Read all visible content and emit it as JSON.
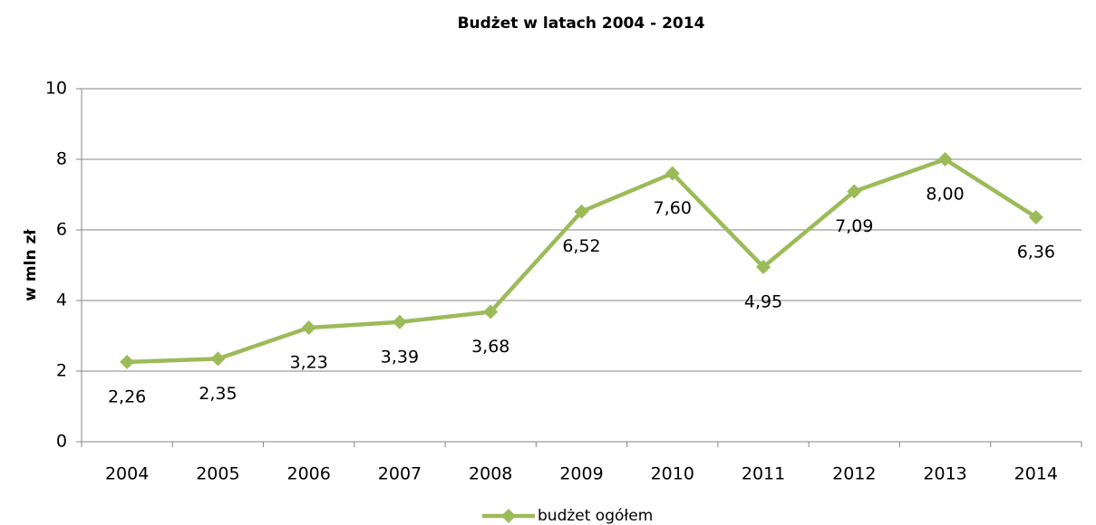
{
  "chart_data": {
    "type": "line",
    "title": "Budżet w latach 2004 - 2014",
    "y_label": "w mln zł",
    "categories": [
      "2004",
      "2005",
      "2006",
      "2007",
      "2008",
      "2009",
      "2010",
      "2011",
      "2012",
      "2013",
      "2014"
    ],
    "series": [
      {
        "name": "budżet ogółem",
        "color": "#9bbb59",
        "values": [
          2.26,
          2.35,
          3.23,
          3.39,
          3.68,
          6.52,
          7.6,
          4.95,
          7.09,
          8.0,
          6.36
        ],
        "value_labels": [
          "2,26",
          "2,35",
          "3,23",
          "3,39",
          "3,68",
          "6,52",
          "7,60",
          "4,95",
          "7,09",
          "8,00",
          "6,36"
        ]
      }
    ],
    "ylim": [
      0,
      10
    ],
    "yticks": [
      0,
      2,
      4,
      6,
      8,
      10
    ],
    "grid": true,
    "legend": "bottom"
  }
}
